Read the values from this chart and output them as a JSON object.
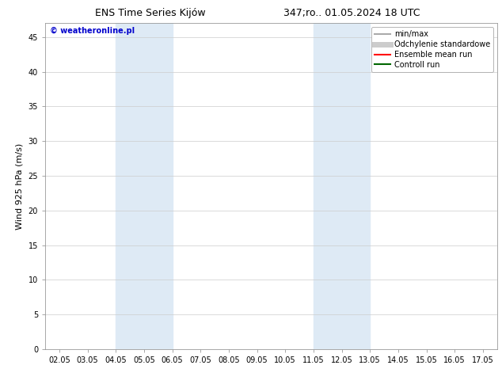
{
  "title_left": "ENS Time Series Kijów",
  "title_right": "347;ro.. 01.05.2024 18 UTC",
  "ylabel": "Wind 925 hPa (m/s)",
  "watermark": "© weatheronline.pl",
  "watermark_color": "#0000cc",
  "xticks": [
    "02.05",
    "03.05",
    "04.05",
    "05.05",
    "06.05",
    "07.05",
    "08.05",
    "09.05",
    "10.05",
    "11.05",
    "12.05",
    "13.05",
    "14.05",
    "15.05",
    "16.05",
    "17.05"
  ],
  "xtick_positions": [
    0,
    1,
    2,
    3,
    4,
    5,
    6,
    7,
    8,
    9,
    10,
    11,
    12,
    13,
    14,
    15
  ],
  "ylim": [
    0,
    47
  ],
  "yticks": [
    0,
    5,
    10,
    15,
    20,
    25,
    30,
    35,
    40,
    45
  ],
  "shaded_bands": [
    {
      "x_start": 2,
      "x_end": 4,
      "color": "#deeaf5"
    },
    {
      "x_start": 9,
      "x_end": 11,
      "color": "#deeaf5"
    }
  ],
  "background_color": "#ffffff",
  "plot_background": "#ffffff",
  "grid_color": "#cccccc",
  "legend_items": [
    {
      "label": "min/max",
      "color": "#aaaaaa",
      "lw": 1.5
    },
    {
      "label": "Odchylenie standardowe",
      "color": "#cccccc",
      "lw": 5
    },
    {
      "label": "Ensemble mean run",
      "color": "#ff0000",
      "lw": 1.5
    },
    {
      "label": "Controll run",
      "color": "#006600",
      "lw": 1.5
    }
  ],
  "title_fontsize": 9,
  "tick_fontsize": 7,
  "ylabel_fontsize": 8,
  "legend_fontsize": 7,
  "watermark_fontsize": 7
}
